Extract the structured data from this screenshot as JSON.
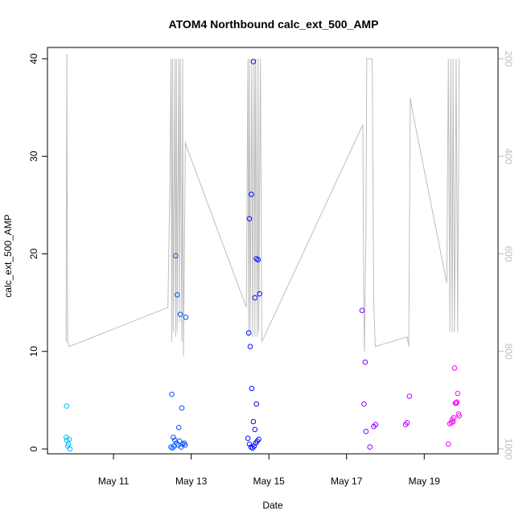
{
  "chart_data": {
    "type": "scatter",
    "title": "ATOM4 Northbound calc_ext_500_AMP",
    "xlabel": "Date",
    "ylabel": "calc_ext_500_AMP",
    "x_ticks": [
      "May 11",
      "May 13",
      "May 15",
      "May 17",
      "May 19"
    ],
    "x_tick_pos": [
      11,
      13,
      15,
      17,
      19
    ],
    "xlim": [
      9.3,
      20.9
    ],
    "ylim": [
      0,
      40
    ],
    "y_ticks": [
      0,
      10,
      20,
      30,
      40
    ],
    "y2_ticks": [
      200,
      400,
      600,
      800,
      1000
    ],
    "y2lim": [
      1000,
      200
    ],
    "y2_color": "#bebebe",
    "grid": false,
    "scatter": {
      "x": [
        9.78,
        9.8,
        9.82,
        9.84,
        9.86,
        9.88,
        9.79,
        12.48,
        12.52,
        12.56,
        12.5,
        12.54,
        12.58,
        12.62,
        12.66,
        12.7,
        12.74,
        12.78,
        12.82,
        12.84,
        12.6,
        12.64,
        12.72,
        12.86,
        12.76,
        12.68,
        14.46,
        14.5,
        14.54,
        14.58,
        14.62,
        14.66,
        14.7,
        14.74,
        14.48,
        14.52,
        14.56,
        14.6,
        14.64,
        14.68,
        14.72,
        14.76,
        14.5,
        14.55,
        14.6,
        14.64,
        14.68,
        17.4,
        17.45,
        17.5,
        17.6,
        17.7,
        17.75,
        17.48,
        18.52,
        18.56,
        18.62,
        19.62,
        19.66,
        19.7,
        19.72,
        19.76,
        19.8,
        19.84,
        19.86,
        19.88,
        19.82,
        19.78,
        19.74,
        19.9
      ],
      "y": [
        1.2,
        0.9,
        0.3,
        0.5,
        1.0,
        0.0,
        4.4,
        0.2,
        0.1,
        0.3,
        5.6,
        1.2,
        0.9,
        0.6,
        0.4,
        0.8,
        0.2,
        0.5,
        0.6,
        0.4,
        19.8,
        15.8,
        13.8,
        13.5,
        4.2,
        2.2,
        1.1,
        0.5,
        0.2,
        0.1,
        0.3,
        0.6,
        0.8,
        1.0,
        11.9,
        10.5,
        6.2,
        2.8,
        15.5,
        19.5,
        19.4,
        15.9,
        23.6,
        26.1,
        39.7,
        2.0,
        4.6,
        14.2,
        4.6,
        1.8,
        0.2,
        2.3,
        2.5,
        8.9,
        2.5,
        2.7,
        5.4,
        0.5,
        2.6,
        2.7,
        3.0,
        3.2,
        4.7,
        4.8,
        5.7,
        3.6,
        4.7,
        8.3,
        2.8,
        3.4
      ],
      "color_scale": [
        "#00bfff",
        "#0000ff",
        "#ff00ff"
      ]
    },
    "line_series": {
      "axis": "right",
      "color": "#bebebe",
      "x": [
        9.78,
        9.8,
        9.82,
        9.86,
        12.4,
        12.45,
        12.48,
        12.5,
        12.52,
        12.54,
        12.58,
        12.6,
        12.62,
        12.64,
        12.68,
        12.7,
        12.72,
        12.76,
        12.78,
        12.8,
        12.85,
        12.88,
        14.42,
        14.46,
        14.48,
        14.5,
        14.52,
        14.56,
        14.58,
        14.62,
        14.64,
        14.66,
        14.7,
        14.72,
        14.74,
        14.78,
        14.82,
        17.42,
        17.44,
        17.46,
        17.5,
        17.52,
        17.66,
        17.7,
        17.74,
        18.56,
        18.6,
        18.64,
        18.68,
        19.58,
        19.62,
        19.66,
        19.68,
        19.72,
        19.74,
        19.78,
        19.82,
        19.86,
        19.9
      ],
      "y": [
        780,
        190,
        780,
        790,
        710,
        460,
        200,
        780,
        200,
        760,
        200,
        770,
        200,
        760,
        200,
        740,
        200,
        780,
        200,
        810,
        370,
        380,
        710,
        200,
        770,
        200,
        760,
        200,
        770,
        200,
        770,
        200,
        770,
        200,
        760,
        200,
        780,
        335,
        680,
        800,
        540,
        200,
        200,
        700,
        790,
        770,
        790,
        280,
        300,
        660,
        200,
        760,
        200,
        760,
        200,
        760,
        200,
        760,
        200
      ]
    }
  }
}
